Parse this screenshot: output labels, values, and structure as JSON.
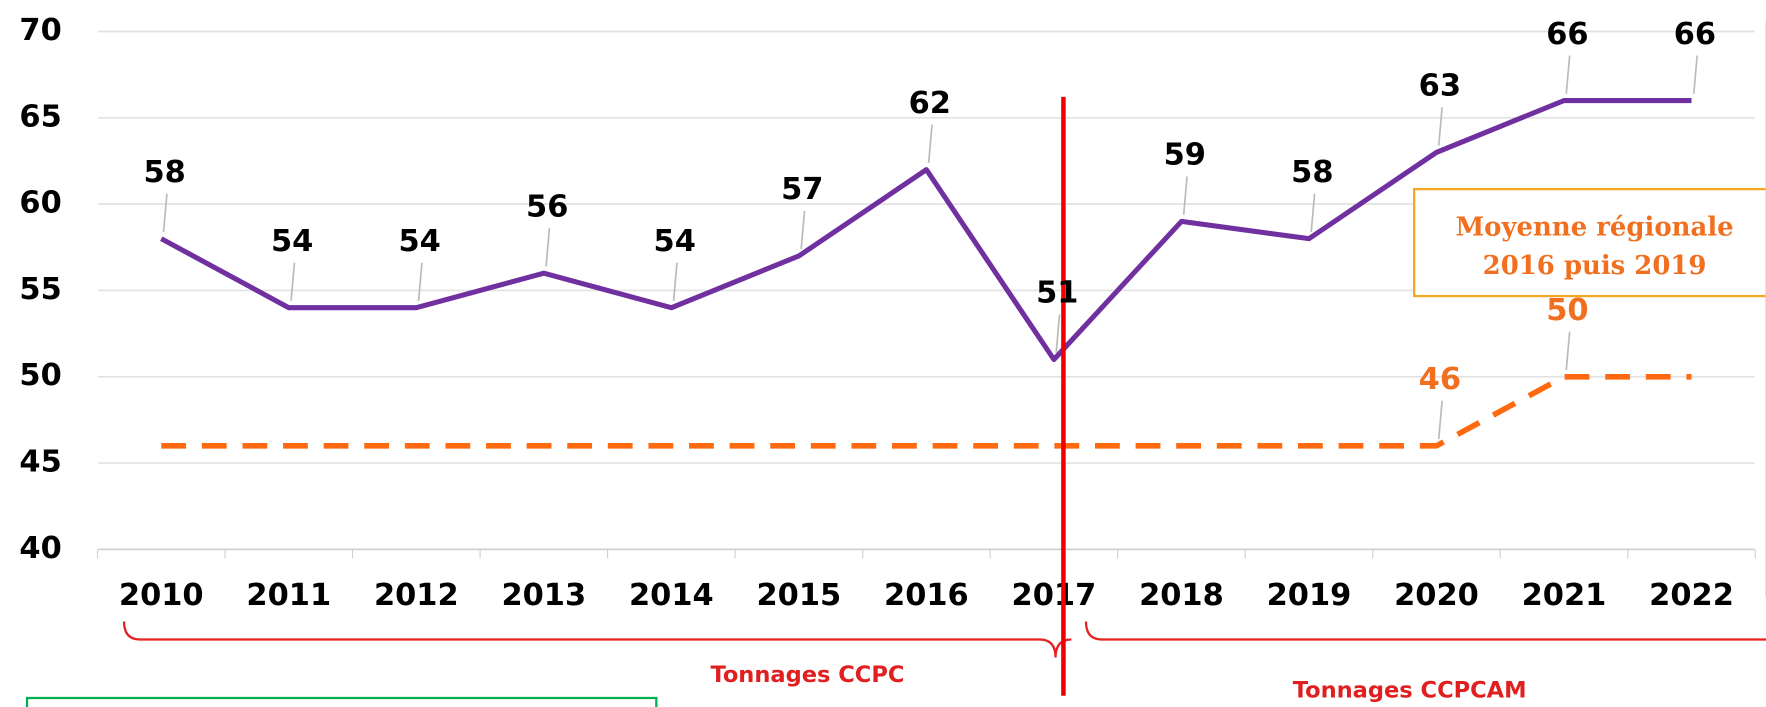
{
  "chart_data": {
    "type": "line",
    "categories": [
      "2010",
      "2011",
      "2012",
      "2013",
      "2014",
      "2015",
      "2016",
      "2017",
      "2018",
      "2019",
      "2020",
      "2021",
      "2022"
    ],
    "series": [
      {
        "name": "Tonnages",
        "color": "#7030a0",
        "dash": false,
        "values": [
          58,
          54,
          54,
          56,
          54,
          57,
          62,
          51,
          59,
          58,
          63,
          66,
          66
        ]
      },
      {
        "name": "Moyenne régionale",
        "color": "#ff6a10",
        "dash": true,
        "values": [
          46,
          46,
          46,
          46,
          46,
          46,
          46,
          46,
          46,
          46,
          46,
          50,
          50
        ],
        "value_labels": [
          null,
          null,
          null,
          null,
          null,
          null,
          null,
          null,
          null,
          null,
          "46",
          "50",
          null
        ]
      }
    ],
    "ylim": [
      40,
      70
    ],
    "yticks": [
      40,
      45,
      50,
      55,
      60,
      65,
      70
    ],
    "grid": true,
    "box_text": [
      "Moyenne régionale",
      "2016 puis 2019"
    ],
    "brace_labels": [
      "Tonnages CCPC",
      "Tonnages CCPCAM"
    ]
  }
}
